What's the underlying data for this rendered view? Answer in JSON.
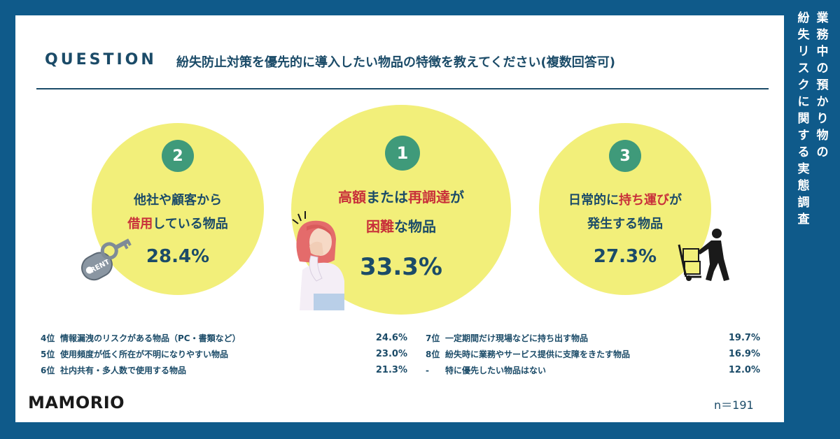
{
  "side_title": [
    "業務中の預かり物の",
    "紛失リスクに関する実態調査"
  ],
  "question": {
    "label": "QUESTION",
    "text": "紛失防止対策を優先的に導入したい物品の特徴を教えてください(複数回答可)"
  },
  "top3": [
    {
      "rank": "2",
      "line1": "他社や顧客から",
      "line2_hl": "借用",
      "line2_rest": "している物品",
      "value": "28.4%"
    },
    {
      "rank": "1",
      "line1_hl1": "高額",
      "line1_mid": "または",
      "line1_hl2": "再調達",
      "line1_end": "が",
      "line2_hl": "困難",
      "line2_rest": "な物品",
      "value": "33.3%"
    },
    {
      "rank": "3",
      "line1_pre": "日常的に",
      "line1_hl": "持ち運び",
      "line1_end": "が",
      "line2": "発生する物品",
      "value": "27.3%"
    }
  ],
  "others_left": [
    {
      "rank": "4位",
      "label": "情報漏洩のリスクがある物品（PC・書類など）",
      "value": "24.6%"
    },
    {
      "rank": "5位",
      "label": "使用頻度が低く所在が不明になりやすい物品",
      "value": "23.0%"
    },
    {
      "rank": "6位",
      "label": "社内共有・多人数で使用する物品",
      "value": "21.3%"
    }
  ],
  "others_right": [
    {
      "rank": "7位",
      "label": "一定期間だけ現場などに持ち出す物品",
      "value": "19.7%"
    },
    {
      "rank": "8位",
      "label": "紛失時に業務やサービス提供に支障をきたす物品",
      "value": "16.9%"
    },
    {
      "rank": "-",
      "label": "特に優先したい物品はない",
      "value": "12.0%"
    }
  ],
  "key_tag_text": "RENT",
  "brand": "MAMORIO",
  "sample_size": "n＝191",
  "colors": {
    "background": "#0f5a8a",
    "circle": "#f2ef7a",
    "badge": "#3f9a7a",
    "highlight": "#c8303a",
    "text": "#1b4b68"
  }
}
